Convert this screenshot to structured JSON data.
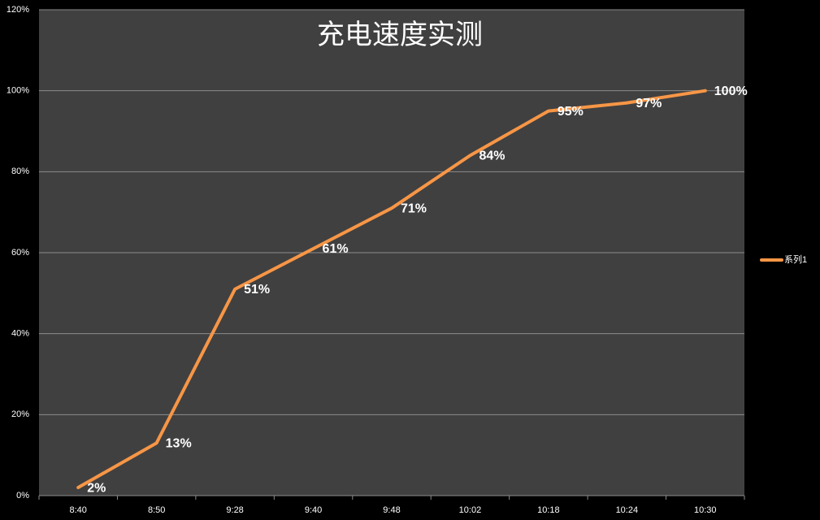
{
  "chart_data": {
    "type": "line",
    "title": "充电速度实测",
    "categories": [
      "8:40",
      "8:50",
      "9:28",
      "9:40",
      "9:48",
      "10:02",
      "10:18",
      "10:24",
      "10:30"
    ],
    "series": [
      {
        "name": "系列1",
        "color": "#f79646",
        "values": [
          2,
          13,
          51,
          61,
          71,
          84,
          95,
          97,
          100
        ],
        "value_labels": [
          "2%",
          "13%",
          "51%",
          "61%",
          "71%",
          "84%",
          "95%",
          "97%",
          "100%"
        ]
      }
    ],
    "ylim": [
      0,
      120
    ],
    "yticks": [
      {
        "value": 0,
        "label": "0%"
      },
      {
        "value": 20,
        "label": "20%"
      },
      {
        "value": 40,
        "label": "40%"
      },
      {
        "value": 60,
        "label": "60%"
      },
      {
        "value": 80,
        "label": "80%"
      },
      {
        "value": 100,
        "label": "100%"
      },
      {
        "value": 120,
        "label": "120%"
      }
    ],
    "grid": true,
    "legend": "right"
  }
}
